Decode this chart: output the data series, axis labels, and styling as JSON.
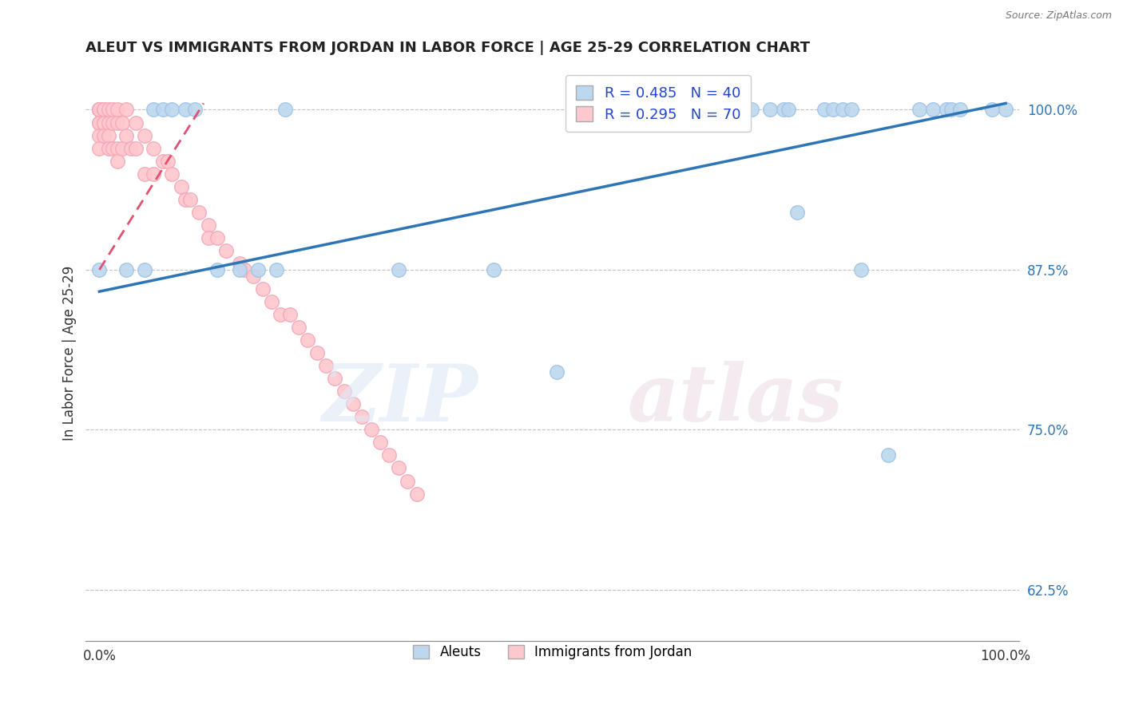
{
  "title": "ALEUT VS IMMIGRANTS FROM JORDAN IN LABOR FORCE | AGE 25-29 CORRELATION CHART",
  "source": "Source: ZipAtlas.com",
  "ylabel": "In Labor Force | Age 25-29",
  "xmin": 0.0,
  "xmax": 1.0,
  "ymin": 0.585,
  "ymax": 1.035,
  "yticks": [
    0.625,
    0.75,
    0.875,
    1.0
  ],
  "ytick_labels": [
    "62.5%",
    "75.0%",
    "87.5%",
    "100.0%"
  ],
  "xtick_labels": [
    "0.0%",
    "100.0%"
  ],
  "aleut_R": 0.485,
  "aleut_N": 40,
  "jordan_R": 0.295,
  "jordan_N": 70,
  "aleut_color": "#bdd7ee",
  "aleut_edge_color": "#9dc3e6",
  "aleut_line_color": "#2e75b6",
  "jordan_color": "#ffc7ce",
  "jordan_edge_color": "#f4a7b9",
  "jordan_line_color": "#e05070",
  "background_color": "#ffffff",
  "aleut_x": [
    0.0,
    0.03,
    0.05,
    0.06,
    0.07,
    0.08,
    0.095,
    0.105,
    0.13,
    0.155,
    0.175,
    0.195,
    0.205,
    0.33,
    0.435,
    0.505,
    0.6,
    0.605,
    0.655,
    0.66,
    0.67,
    0.68,
    0.72,
    0.74,
    0.755,
    0.76,
    0.77,
    0.8,
    0.81,
    0.82,
    0.83,
    0.84,
    0.87,
    0.905,
    0.92,
    0.935,
    0.94,
    0.95,
    0.985,
    1.0
  ],
  "aleut_y": [
    0.875,
    0.875,
    0.875,
    1.0,
    1.0,
    1.0,
    1.0,
    1.0,
    0.875,
    0.875,
    0.875,
    0.875,
    1.0,
    0.875,
    0.875,
    0.795,
    1.0,
    1.0,
    1.0,
    1.0,
    1.0,
    1.0,
    1.0,
    1.0,
    1.0,
    1.0,
    0.92,
    1.0,
    1.0,
    1.0,
    1.0,
    0.875,
    0.73,
    1.0,
    1.0,
    1.0,
    1.0,
    1.0,
    1.0,
    1.0
  ],
  "jordan_x": [
    0.0,
    0.0,
    0.0,
    0.0,
    0.0,
    0.0,
    0.0,
    0.0,
    0.0,
    0.0,
    0.0,
    0.005,
    0.005,
    0.005,
    0.005,
    0.005,
    0.01,
    0.01,
    0.01,
    0.01,
    0.015,
    0.015,
    0.015,
    0.02,
    0.02,
    0.02,
    0.02,
    0.025,
    0.025,
    0.03,
    0.03,
    0.035,
    0.04,
    0.04,
    0.05,
    0.05,
    0.06,
    0.06,
    0.07,
    0.075,
    0.08,
    0.09,
    0.095,
    0.1,
    0.11,
    0.12,
    0.12,
    0.13,
    0.14,
    0.155,
    0.16,
    0.17,
    0.18,
    0.19,
    0.2,
    0.21,
    0.22,
    0.23,
    0.24,
    0.25,
    0.26,
    0.27,
    0.28,
    0.29,
    0.3,
    0.31,
    0.32,
    0.33,
    0.34,
    0.35
  ],
  "jordan_y": [
    1.0,
    1.0,
    1.0,
    1.0,
    1.0,
    1.0,
    1.0,
    0.99,
    0.99,
    0.98,
    0.97,
    1.0,
    1.0,
    0.99,
    0.99,
    0.98,
    1.0,
    0.99,
    0.98,
    0.97,
    1.0,
    0.99,
    0.97,
    1.0,
    0.99,
    0.97,
    0.96,
    0.99,
    0.97,
    1.0,
    0.98,
    0.97,
    0.99,
    0.97,
    0.98,
    0.95,
    0.97,
    0.95,
    0.96,
    0.96,
    0.95,
    0.94,
    0.93,
    0.93,
    0.92,
    0.91,
    0.9,
    0.9,
    0.89,
    0.88,
    0.875,
    0.87,
    0.86,
    0.85,
    0.84,
    0.84,
    0.83,
    0.82,
    0.81,
    0.8,
    0.79,
    0.78,
    0.77,
    0.76,
    0.75,
    0.74,
    0.73,
    0.72,
    0.71,
    0.7
  ],
  "jordan_line_x0": 0.0,
  "jordan_line_x1": 0.115,
  "jordan_line_y0": 0.875,
  "jordan_line_y1": 1.005,
  "aleut_line_x0": 0.0,
  "aleut_line_x1": 1.0,
  "aleut_line_y0": 0.858,
  "aleut_line_y1": 1.005
}
